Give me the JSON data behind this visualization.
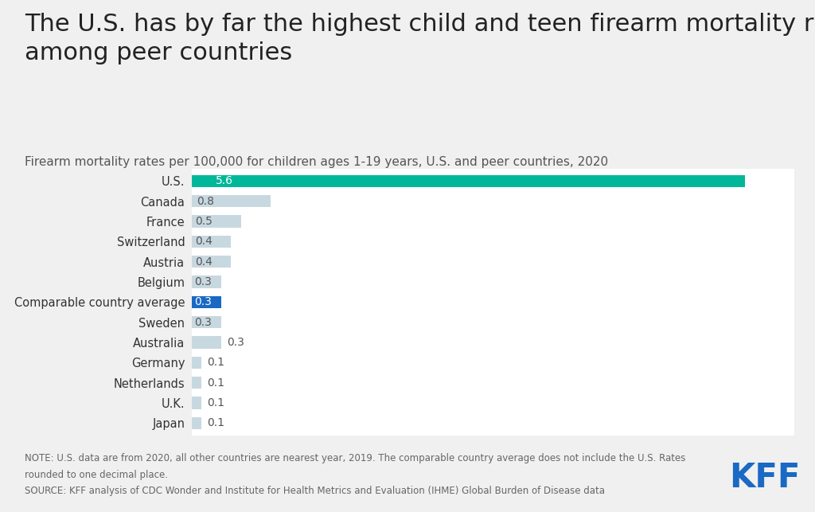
{
  "title": "The U.S. has by far the highest child and teen firearm mortality rate\namong peer countries",
  "subtitle": "Firearm mortality rates per 100,000 for children ages 1-19 years, U.S. and peer countries, 2020",
  "categories": [
    "U.S.",
    "Canada",
    "France",
    "Switzerland",
    "Austria",
    "Belgium",
    "Comparable country average",
    "Sweden",
    "Australia",
    "Germany",
    "Netherlands",
    "U.K.",
    "Japan"
  ],
  "values": [
    5.6,
    0.8,
    0.5,
    0.4,
    0.4,
    0.3,
    0.3,
    0.3,
    0.3,
    0.1,
    0.1,
    0.1,
    0.1
  ],
  "bar_colors": [
    "#00b899",
    "#c8d8e0",
    "#c8d8e0",
    "#c8d8e0",
    "#c8d8e0",
    "#c8d8e0",
    "#1a69c4",
    "#c8d8e0",
    "#c8d8e0",
    "#c8d8e0",
    "#c8d8e0",
    "#c8d8e0",
    "#c8d8e0"
  ],
  "label_inside": [
    true,
    true,
    true,
    true,
    true,
    true,
    true,
    true,
    false,
    false,
    false,
    false,
    false
  ],
  "label_colors_inside": [
    "#ffffff",
    "#555555",
    "#555555",
    "#555555",
    "#555555",
    "#555555",
    "#ffffff",
    "#555555",
    "#555555",
    "#555555",
    "#555555",
    "#555555",
    "#555555"
  ],
  "note_line1": "NOTE: U.S. data are from 2020, all other countries are nearest year, 2019. The comparable country average does not include the U.S. Rates",
  "note_line2": "rounded to one decimal place.",
  "source": "SOURCE: KFF analysis of CDC Wonder and Institute for Health Metrics and Evaluation (IHME) Global Burden of Disease data",
  "kff_color": "#1a69c4",
  "figure_bg": "#f0f0f0",
  "chart_bg": "#ffffff",
  "xlim": [
    0,
    6.1
  ],
  "title_fontsize": 22,
  "subtitle_fontsize": 11,
  "value_fontsize": 10,
  "ytick_fontsize": 10.5,
  "note_fontsize": 8.5,
  "bar_height": 0.6
}
